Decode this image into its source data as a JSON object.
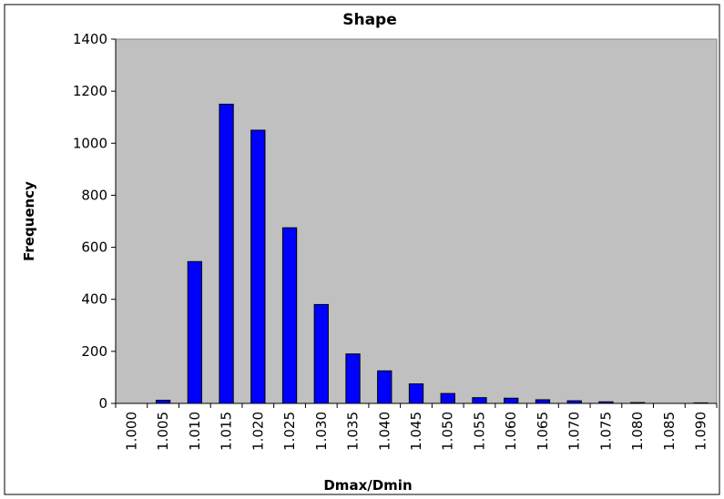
{
  "chart_data": {
    "type": "bar",
    "title": "Shape",
    "x_label": "Dmax/Dmin",
    "y_label": "Frequency",
    "categories": [
      "1.000",
      "1.005",
      "1.010",
      "1.015",
      "1.020",
      "1.025",
      "1.030",
      "1.035",
      "1.040",
      "1.045",
      "1.050",
      "1.055",
      "1.060",
      "1.065",
      "1.070",
      "1.075",
      "1.080",
      "1.085",
      "1.090"
    ],
    "values": [
      0,
      12,
      545,
      1150,
      1050,
      675,
      380,
      190,
      125,
      75,
      38,
      22,
      20,
      14,
      10,
      6,
      3,
      0,
      2
    ],
    "color": "#0000ff",
    "plot_background": "#c0c0c0",
    "ylim": [
      0,
      1400
    ],
    "yticks": [
      0,
      200,
      400,
      600,
      800,
      1000,
      1200,
      1400
    ],
    "grid": false
  }
}
